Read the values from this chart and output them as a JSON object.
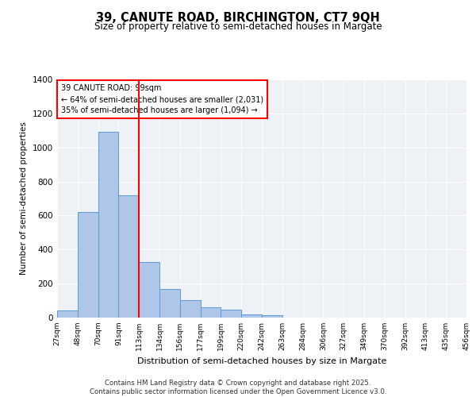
{
  "title_line1": "39, CANUTE ROAD, BIRCHINGTON, CT7 9QH",
  "title_line2": "Size of property relative to semi-detached houses in Margate",
  "xlabel": "Distribution of semi-detached houses by size in Margate",
  "ylabel": "Number of semi-detached properties",
  "bin_labels": [
    "27sqm",
    "48sqm",
    "70sqm",
    "91sqm",
    "113sqm",
    "134sqm",
    "156sqm",
    "177sqm",
    "199sqm",
    "220sqm",
    "242sqm",
    "263sqm",
    "284sqm",
    "306sqm",
    "327sqm",
    "349sqm",
    "370sqm",
    "392sqm",
    "413sqm",
    "435sqm",
    "456sqm"
  ],
  "bar_heights": [
    40,
    620,
    1090,
    720,
    325,
    170,
    105,
    60,
    45,
    20,
    15,
    0,
    0,
    0,
    0,
    0,
    0,
    0,
    0,
    0
  ],
  "bar_color": "#aec6e8",
  "bar_edge_color": "#5b9bd5",
  "vline_color": "red",
  "vline_position": 3.5,
  "annotation_text": "39 CANUTE ROAD: 99sqm\n← 64% of semi-detached houses are smaller (2,031)\n35% of semi-detached houses are larger (1,094) →",
  "ylim": [
    0,
    1400
  ],
  "yticks": [
    0,
    200,
    400,
    600,
    800,
    1000,
    1200,
    1400
  ],
  "footer": "Contains HM Land Registry data © Crown copyright and database right 2025.\nContains public sector information licensed under the Open Government Licence v3.0.",
  "bg_color": "#eef2f7"
}
